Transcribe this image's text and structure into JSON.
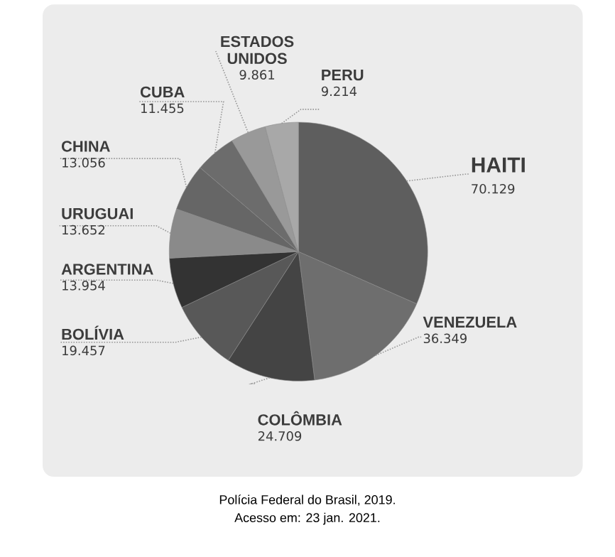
{
  "chart_data": {
    "type": "pie",
    "categories": [
      "HAITI",
      "VENEZUELA",
      "COLÔMBIA",
      "BOLÍVIA",
      "ARGENTINA",
      "URUGUAI",
      "CHINA",
      "CUBA",
      "ESTADOS UNIDOS",
      "PERU"
    ],
    "values": [
      70129,
      36349,
      24709,
      19457,
      13954,
      13652,
      13056,
      11455,
      9861,
      9214
    ],
    "value_labels": [
      "70.129",
      "36.349",
      "24.709",
      "19.457",
      "13.954",
      "13.652",
      "13.056",
      "11.455",
      "9.861",
      "9.214"
    ],
    "colors": [
      "#5e5e5e",
      "#6e6e6e",
      "#444444",
      "#585858",
      "#333333",
      "#8a8a8a",
      "#666666",
      "#6c6c6c",
      "#999999",
      "#a8a8a8"
    ],
    "annotations": [
      "Polícia Federal do Brasil, 2019.",
      "Acesso em: 23 jan. 2021."
    ]
  }
}
